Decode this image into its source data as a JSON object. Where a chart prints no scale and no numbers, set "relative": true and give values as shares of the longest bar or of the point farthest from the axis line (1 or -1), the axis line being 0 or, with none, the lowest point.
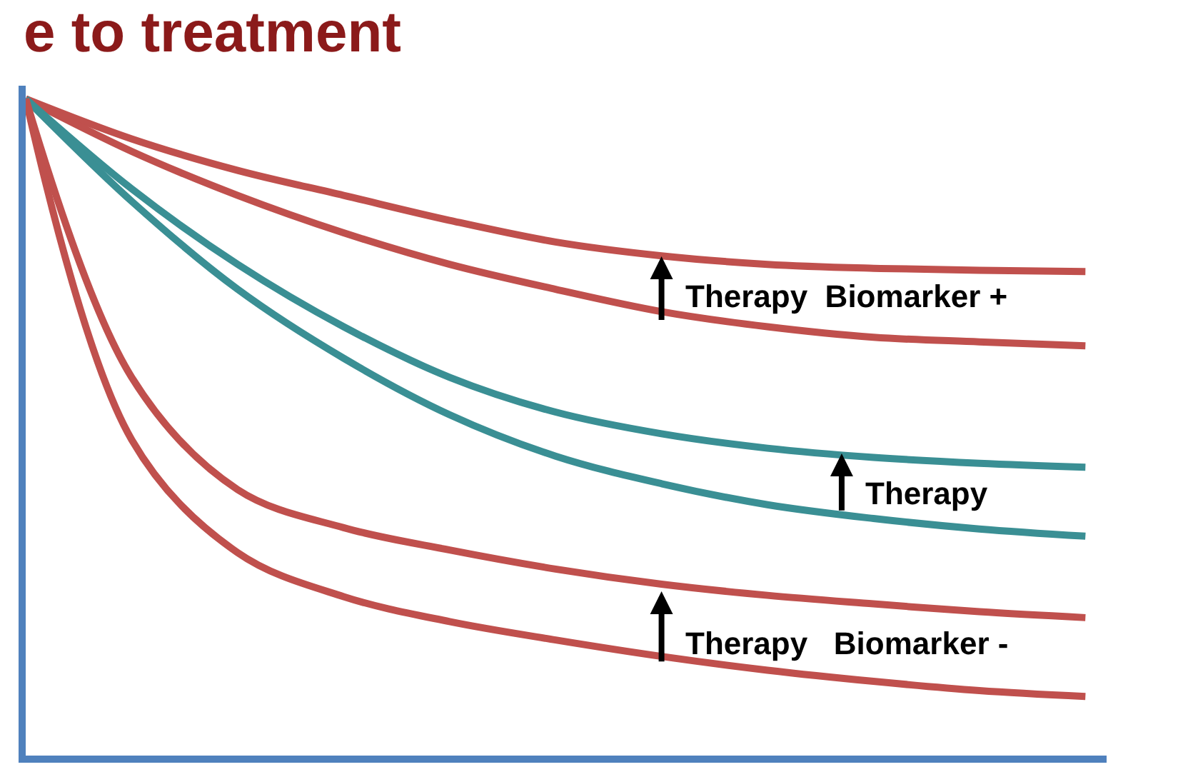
{
  "chart_data": {
    "type": "line",
    "title": "e to treatment",
    "relative": true,
    "categories": [
      null,
      null,
      null,
      null,
      null,
      null,
      null,
      null,
      null,
      null,
      null
    ],
    "series": [
      {
        "color": "#c0504d",
        "values": [
          1,
          0.939,
          0.891,
          0.853,
          0.815,
          0.782,
          0.761,
          0.748,
          0.742,
          0.739,
          0.737
        ]
      },
      {
        "color": "#c0504d",
        "values": [
          1,
          0.92,
          0.853,
          0.796,
          0.748,
          0.71,
          0.676,
          0.653,
          0.637,
          0.63,
          0.624
        ]
      },
      {
        "color": "#3a8f94",
        "values": [
          1,
          0.863,
          0.748,
          0.653,
          0.576,
          0.523,
          0.49,
          0.468,
          0.454,
          0.445,
          0.439
        ]
      },
      {
        "color": "#3a8f94",
        "values": [
          1,
          0.844,
          0.71,
          0.605,
          0.519,
          0.456,
          0.414,
          0.382,
          0.361,
          0.345,
          0.334
        ]
      },
      {
        "color": "#c0504d",
        "values": [
          1,
          0.576,
          0.405,
          0.347,
          0.313,
          0.284,
          0.261,
          0.244,
          0.231,
          0.219,
          0.21
        ]
      },
      {
        "color": "#c0504d",
        "values": [
          1,
          0.481,
          0.309,
          0.242,
          0.204,
          0.176,
          0.151,
          0.13,
          0.113,
          0.099,
          0.09
        ]
      }
    ],
    "annotations": [
      "Therapy  Biomarker +",
      "Therapy",
      "Therapy   Biomarker -"
    ]
  }
}
